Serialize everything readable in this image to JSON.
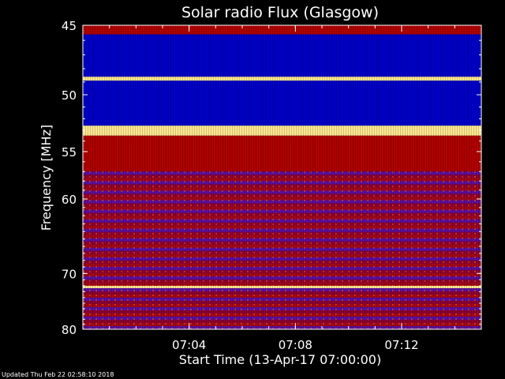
{
  "chart_data": {
    "type": "heatmap",
    "title": "Solar radio Flux (Glasgow)",
    "ylabel": "Frequency [MHz]",
    "xlabel": "Start Time (13-Apr-17 07:00:00)",
    "ylim": [
      45,
      80
    ],
    "y_scale": "reciprocal",
    "y_ticks": [
      45,
      50,
      55,
      60,
      70,
      80
    ],
    "xlim": [
      "07:00:00",
      "07:15:00"
    ],
    "x_ticks": [
      "07:04",
      "07:08",
      "07:12"
    ],
    "colors": {
      "low": "#0000c8",
      "mid": "#b00000",
      "high": "#ffe890",
      "background": "#000000"
    },
    "bands": [
      {
        "from_mhz": 45.0,
        "to_mhz": 45.6,
        "level": "mid"
      },
      {
        "from_mhz": 45.6,
        "to_mhz": 48.6,
        "level": "low"
      },
      {
        "from_mhz": 48.6,
        "to_mhz": 48.9,
        "level": "high"
      },
      {
        "from_mhz": 48.9,
        "to_mhz": 52.6,
        "level": "low"
      },
      {
        "from_mhz": 52.6,
        "to_mhz": 53.5,
        "level": "high"
      },
      {
        "from_mhz": 53.5,
        "to_mhz": 57.0,
        "level": "mid"
      },
      {
        "from_mhz": 57.0,
        "to_mhz": 72.0,
        "level": "mixed"
      },
      {
        "from_mhz": 72.0,
        "to_mhz": 72.4,
        "level": "high"
      },
      {
        "from_mhz": 72.4,
        "to_mhz": 80.0,
        "level": "mixed"
      }
    ]
  },
  "footer": {
    "updated": "Updated Thu Feb 22 02:58:10 2018"
  }
}
